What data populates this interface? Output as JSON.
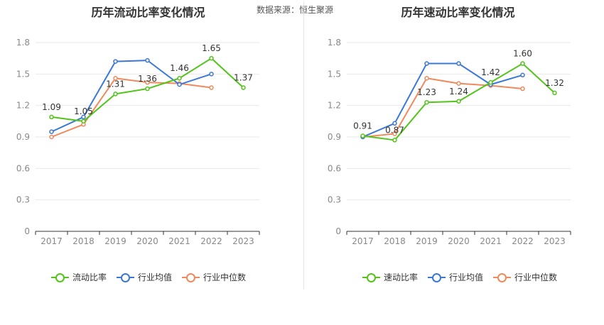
{
  "source_label": "数据来源：恒生聚源",
  "charts": [
    {
      "title": "历年流动比率变化情况",
      "chart_data": {
        "type": "line",
        "title": "历年流动比率变化情况",
        "categories": [
          "2017",
          "2018",
          "2019",
          "2020",
          "2021",
          "2022",
          "2023"
        ],
        "ylim": [
          0,
          1.8
        ],
        "yticks": [
          "0",
          "0.3",
          "0.6",
          "0.9",
          "1.2",
          "1.5",
          "1.8"
        ],
        "grid": true,
        "legend": "bottom",
        "series": [
          {
            "name": "流动比率",
            "color": "#52c41a",
            "values": [
              1.09,
              1.05,
              1.31,
              1.36,
              1.46,
              1.65,
              1.37
            ],
            "labels": [
              "1.09",
              "1.05",
              "1.31",
              "1.36",
              "1.46",
              "1.65",
              "1.37"
            ]
          },
          {
            "name": "行业均值",
            "color": "#3a78d8",
            "values": [
              0.95,
              1.09,
              1.62,
              1.63,
              1.4,
              1.5,
              null
            ]
          },
          {
            "name": "行业中位数",
            "color": "#f08a5d",
            "values": [
              0.9,
              1.02,
              1.46,
              1.42,
              1.41,
              1.37,
              null
            ]
          }
        ]
      }
    },
    {
      "title": "历年速动比率变化情况",
      "chart_data": {
        "type": "line",
        "title": "历年速动比率变化情况",
        "categories": [
          "2017",
          "2018",
          "2019",
          "2020",
          "2021",
          "2022",
          "2023"
        ],
        "ylim": [
          0,
          1.8
        ],
        "yticks": [
          "0",
          "0.3",
          "0.6",
          "0.9",
          "1.2",
          "1.5",
          "1.8"
        ],
        "grid": true,
        "legend": "bottom",
        "series": [
          {
            "name": "速动比率",
            "color": "#52c41a",
            "values": [
              0.91,
              0.87,
              1.23,
              1.24,
              1.42,
              1.6,
              1.32
            ],
            "labels": [
              "0.91",
              "0.87",
              "1.23",
              "1.24",
              "1.42",
              "1.60",
              "1.32"
            ]
          },
          {
            "name": "行业均值",
            "color": "#3a78d8",
            "values": [
              0.9,
              1.03,
              1.6,
              1.6,
              1.4,
              1.49,
              null
            ]
          },
          {
            "name": "行业中位数",
            "color": "#f08a5d",
            "values": [
              0.9,
              0.93,
              1.46,
              1.41,
              1.39,
              1.36,
              null
            ]
          }
        ]
      }
    }
  ]
}
